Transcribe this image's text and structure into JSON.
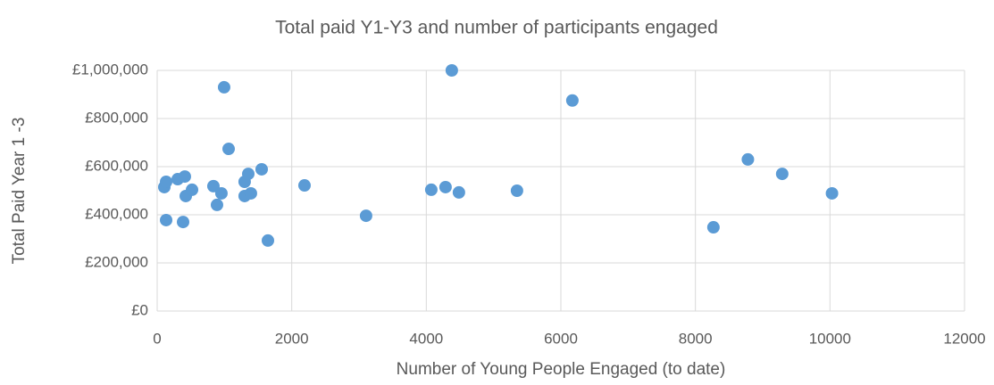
{
  "chart_data": {
    "type": "scatter",
    "title": "Total paid Y1-Y3 and number of participants engaged",
    "x_label": "Number of Young People Engaged (to date)",
    "y_label": "Total Paid Year 1 -3",
    "color": "#5b9bd5",
    "grid": true,
    "xlim": [
      0,
      12000
    ],
    "xticks": [
      0,
      2000,
      4000,
      6000,
      8000,
      10000,
      12000
    ],
    "ylim": [
      0,
      1000000
    ],
    "yticks": [
      {
        "value": 0,
        "label": "£0"
      },
      {
        "value": 200000,
        "label": "£200,000"
      },
      {
        "value": 400000,
        "label": "£400,000"
      },
      {
        "value": 600000,
        "label": "£600,000"
      },
      {
        "value": 800000,
        "label": "£800,000"
      },
      {
        "value": 1000000,
        "label": "£1,000,000"
      }
    ],
    "x": [
      106,
      133,
      133,
      305,
      411,
      425,
      385,
      518,
      836,
      889,
      955,
      995,
      1062,
      1300,
      1300,
      1354,
      1393,
      1553,
      1646,
      2190,
      3105,
      4074,
      4286,
      4379,
      4485,
      5348,
      6171,
      8268,
      8780,
      9290,
      10030
    ],
    "values": [
      515000,
      537000,
      378000,
      548000,
      559000,
      478000,
      370000,
      504000,
      519000,
      441000,
      489000,
      930000,
      674000,
      537000,
      478000,
      570000,
      489000,
      589000,
      293000,
      522000,
      396000,
      504000,
      515000,
      1000000,
      493000,
      500000,
      875000,
      348000,
      630000,
      570000,
      489000
    ]
  }
}
